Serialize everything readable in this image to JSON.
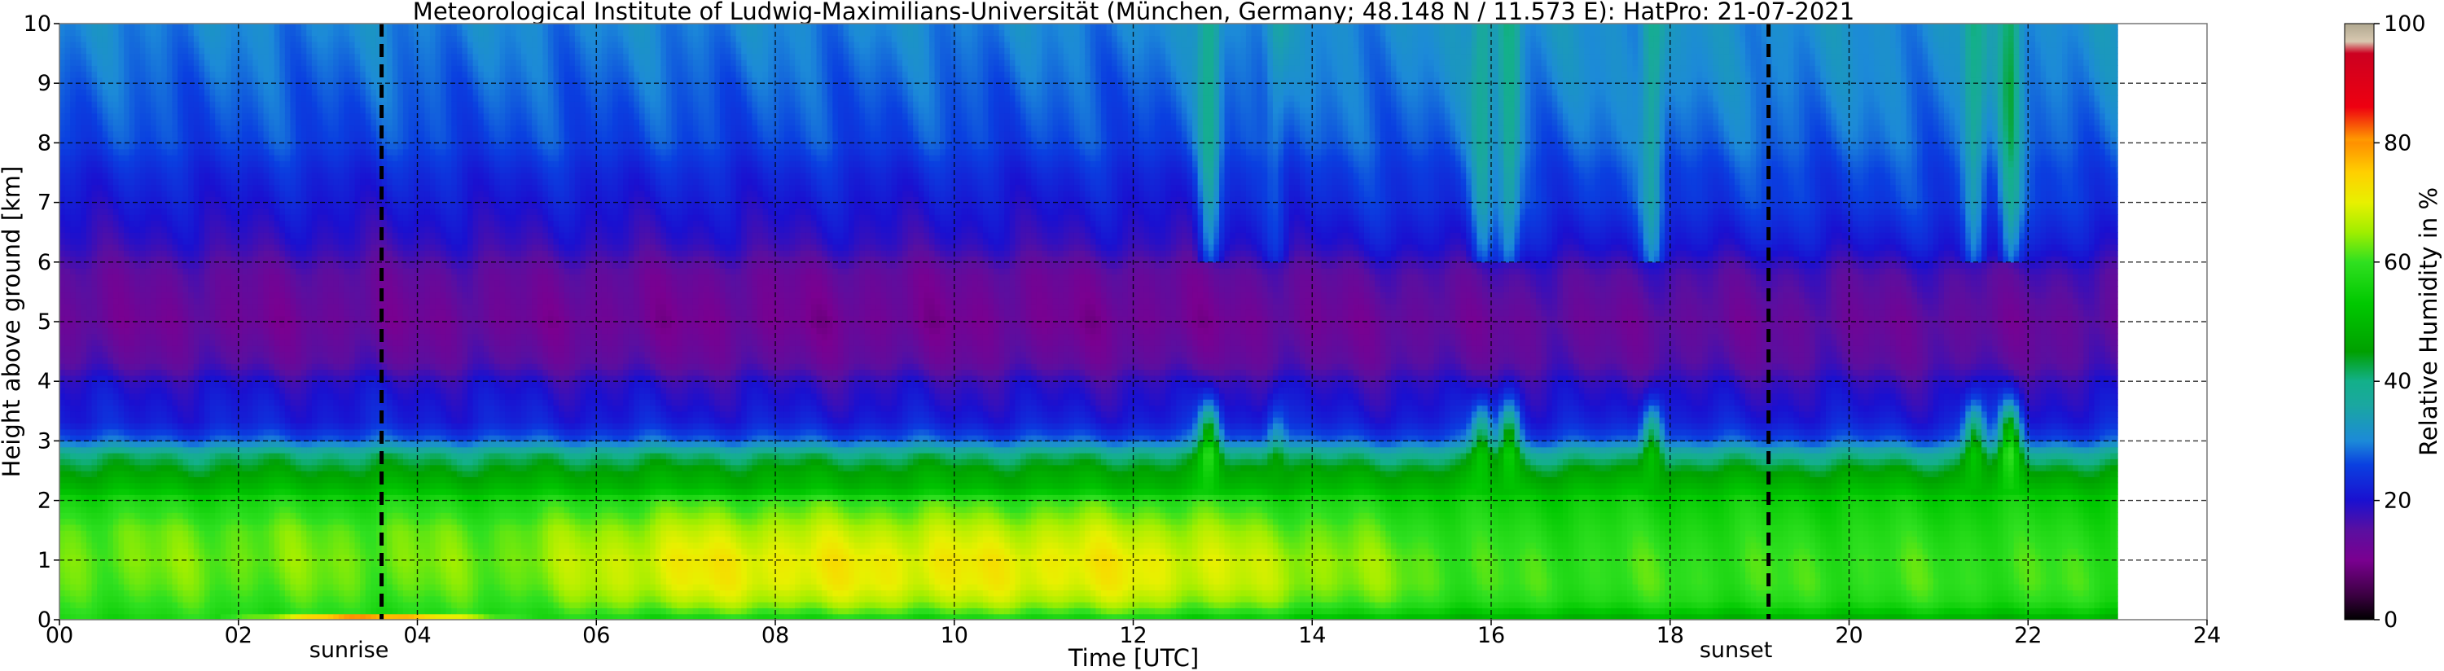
{
  "chart_data": {
    "type": "heatmap",
    "title": "Meteorological Institute of Ludwig-Maximilians-Universität (München, Germany; 48.148 N / 11.573 E):    HatPro: 21-07-2021",
    "xlabel": "Time [UTC]",
    "ylabel": "Height above ground [km]",
    "xlim": [
      0,
      24
    ],
    "ylim": [
      0,
      10
    ],
    "data_end_hour": 23,
    "x_ticks": [
      "00",
      "02",
      "04",
      "06",
      "08",
      "10",
      "12",
      "14",
      "16",
      "18",
      "20",
      "22",
      "24"
    ],
    "y_ticks": [
      "0",
      "1",
      "2",
      "3",
      "4",
      "5",
      "6",
      "7",
      "8",
      "9",
      "10"
    ],
    "grid": true,
    "markers": [
      {
        "name": "sunrise",
        "hour": 3.6
      },
      {
        "name": "sunset",
        "hour": 19.1
      }
    ],
    "colorbar": {
      "label": "Relative Humidity in %",
      "ticks": [
        "0",
        "20",
        "40",
        "60",
        "80",
        "100"
      ],
      "min": 0,
      "max": 100,
      "stops": [
        [
          0,
          "#000000"
        ],
        [
          4,
          "#3a0040"
        ],
        [
          10,
          "#7a0090"
        ],
        [
          15,
          "#5a0fa0"
        ],
        [
          20,
          "#1a10d0"
        ],
        [
          26,
          "#0a40e0"
        ],
        [
          30,
          "#1c8ad8"
        ],
        [
          36,
          "#1aa7a0"
        ],
        [
          40,
          "#13b08a"
        ],
        [
          45,
          "#00a000"
        ],
        [
          53,
          "#00c800"
        ],
        [
          60,
          "#30e020"
        ],
        [
          65,
          "#a0ee00"
        ],
        [
          70,
          "#e8f000"
        ],
        [
          75,
          "#ffd000"
        ],
        [
          80,
          "#ff9000"
        ],
        [
          80.5,
          "#ff9a00"
        ],
        [
          86,
          "#ee0010"
        ],
        [
          95,
          "#cc0020"
        ],
        [
          97,
          "#d8c8b0"
        ],
        [
          100,
          "#b0a890"
        ]
      ]
    },
    "profile_rh": {
      "heights_km": [
        0,
        0.1,
        0.3,
        0.6,
        1.0,
        1.5,
        2.0,
        2.2,
        2.5,
        2.8,
        3.0,
        3.3,
        3.6,
        4.0,
        4.3,
        5.0,
        5.8,
        6.3,
        7.0,
        7.5,
        8.0,
        8.5,
        9.0,
        10.0
      ],
      "night_rh": [
        57,
        58,
        60,
        62,
        63,
        62,
        57,
        50,
        45,
        40,
        28,
        22,
        21,
        19,
        15,
        12,
        14,
        18,
        21,
        23,
        26,
        27,
        28,
        30
      ],
      "day_rh": [
        55,
        60,
        66,
        70,
        71,
        67,
        60,
        50,
        46,
        40,
        28,
        22,
        20,
        18,
        14,
        11,
        13,
        18,
        21,
        23,
        26,
        27,
        28,
        30
      ],
      "evening_rh": [
        48,
        52,
        58,
        60,
        60,
        58,
        55,
        50,
        45,
        38,
        27,
        22,
        20,
        18,
        15,
        13,
        16,
        21,
        25,
        26,
        28,
        29,
        30,
        31
      ]
    },
    "events": [
      {
        "hour": 12.85,
        "rh_boost": 24
      },
      {
        "hour": 13.6,
        "rh_boost": 10
      },
      {
        "hour": 15.9,
        "rh_boost": 18
      },
      {
        "hour": 16.2,
        "rh_boost": 22
      },
      {
        "hour": 17.8,
        "rh_boost": 20
      },
      {
        "hour": 21.4,
        "rh_boost": 20
      },
      {
        "hour": 21.8,
        "rh_boost": 26
      }
    ]
  }
}
